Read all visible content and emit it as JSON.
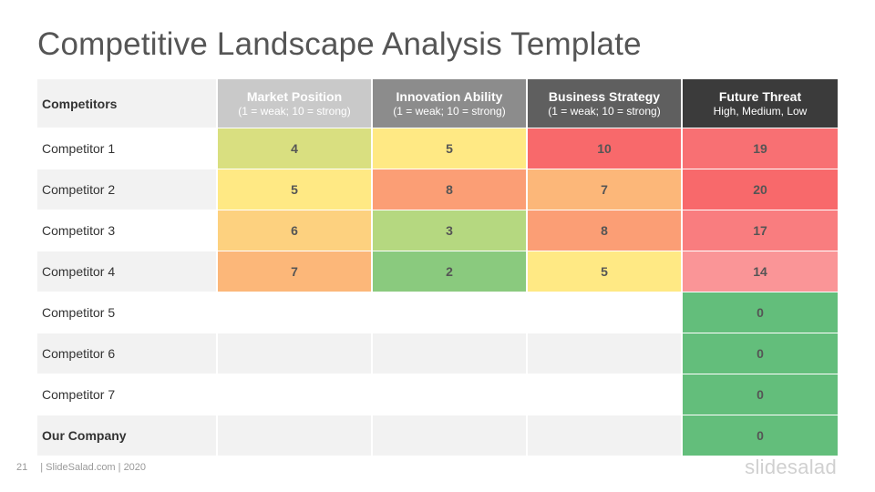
{
  "title": "Competitive Landscape Analysis Template",
  "table": {
    "header": {
      "label": "Competitors",
      "columns": [
        {
          "title": "Market Position",
          "sub": "(1 = weak; 10 = strong)"
        },
        {
          "title": "Innovation Ability",
          "sub": "(1 = weak; 10 = strong)"
        },
        {
          "title": "Business Strategy",
          "sub": "(1 = weak; 10 = strong)"
        },
        {
          "title": "Future Threat",
          "sub": "High,  Medium,  Low"
        }
      ]
    },
    "rows": [
      {
        "name": "Competitor 1",
        "values": [
          "4",
          "5",
          "10",
          "19"
        ]
      },
      {
        "name": "Competitor 2",
        "values": [
          "5",
          "8",
          "7",
          "20"
        ]
      },
      {
        "name": "Competitor 3",
        "values": [
          "6",
          "3",
          "8",
          "17"
        ]
      },
      {
        "name": "Competitor 4",
        "values": [
          "7",
          "2",
          "5",
          "14"
        ]
      },
      {
        "name": "Competitor 5",
        "values": [
          "",
          "",
          "",
          "0"
        ]
      },
      {
        "name": "Competitor 6",
        "values": [
          "",
          "",
          "",
          "0"
        ]
      },
      {
        "name": "Competitor 7",
        "values": [
          "",
          "",
          "",
          "0"
        ]
      },
      {
        "name": "Our Company",
        "values": [
          "",
          "",
          "",
          "0"
        ]
      }
    ],
    "cell_colors": [
      [
        "#d9df80",
        "#ffe984",
        "#f8696b",
        "#f87073"
      ],
      [
        "#ffe984",
        "#fb9e75",
        "#fcb779",
        "#f8696b"
      ],
      [
        "#fdd17f",
        "#b5d880",
        "#fb9e75",
        "#f97d7f"
      ],
      [
        "#fcb779",
        "#8aca7e",
        "#ffe984",
        "#fa9597"
      ],
      [
        "",
        "",
        "",
        "#63be7b"
      ],
      [
        "",
        "",
        "",
        "#63be7b"
      ],
      [
        "",
        "",
        "",
        "#63be7b"
      ],
      [
        "",
        "",
        "",
        "#63be7b"
      ]
    ]
  },
  "footer": {
    "page_number": "21",
    "text": "|  SlideSalad.com | 2020"
  },
  "brand": "slidesalad"
}
